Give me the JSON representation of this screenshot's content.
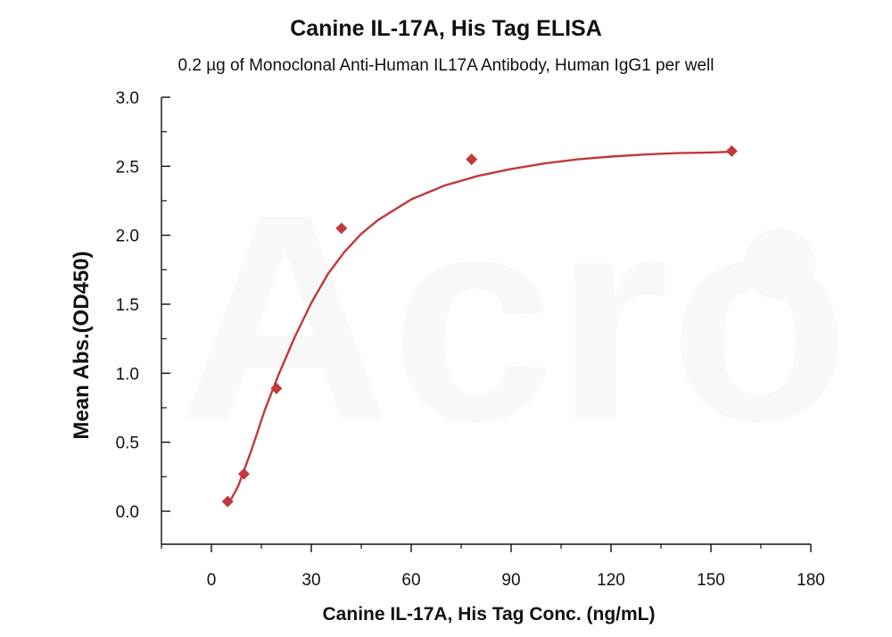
{
  "chart_data": {
    "type": "scatter",
    "title": "Canine IL-17A, His Tag ELISA",
    "subtitle": "0.2 µg of Monoclonal Anti-Human IL17A Antibody, Human IgG1 per well",
    "xlabel": "Canine IL-17A, His Tag Conc. (ng/mL)",
    "ylabel": "Mean Abs.(OD450)",
    "xlim": [
      -10,
      180
    ],
    "ylim": [
      -0.25,
      3.0
    ],
    "x_ticks": [
      0,
      30,
      60,
      90,
      120,
      150,
      180
    ],
    "x_tick_labels": [
      "0",
      "30",
      "60",
      "90",
      "120",
      "150",
      "180"
    ],
    "y_ticks": [
      0.0,
      0.5,
      1.0,
      1.5,
      2.0,
      2.5,
      3.0
    ],
    "y_tick_labels": [
      "0.0",
      "0.5",
      "1.0",
      "1.5",
      "2.0",
      "2.5",
      "3.0"
    ],
    "grid": false,
    "series": [
      {
        "marker": "diamond",
        "color": "#c0393b",
        "x": [
          4.88,
          9.77,
          19.53,
          39.06,
          78.13,
          156.25
        ],
        "y": [
          0.07,
          0.27,
          0.89,
          2.05,
          2.55,
          2.61
        ],
        "fit": {
          "curve": "four-parameter logistic",
          "color": "#c0393b",
          "x": [
            4.88,
            8,
            12,
            16,
            20,
            25,
            30,
            35,
            40,
            45,
            50,
            60,
            70,
            80,
            90,
            100,
            110,
            120,
            130,
            140,
            150,
            156.25
          ],
          "y": [
            0.04,
            0.18,
            0.44,
            0.73,
            0.98,
            1.26,
            1.51,
            1.72,
            1.88,
            2.01,
            2.11,
            2.26,
            2.36,
            2.43,
            2.48,
            2.52,
            2.55,
            2.57,
            2.585,
            2.595,
            2.6,
            2.605
          ]
        }
      }
    ],
    "watermark": "Acro BIOSYSTEMS"
  }
}
